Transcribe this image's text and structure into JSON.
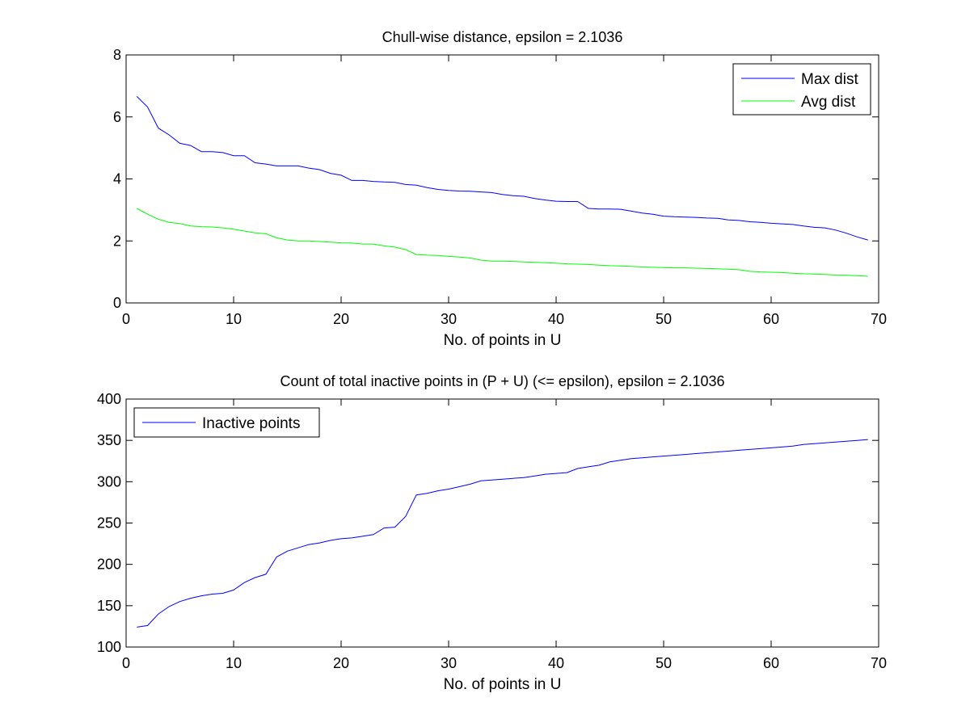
{
  "chart_data": [
    {
      "type": "line",
      "title": "Chull-wise distance, epsilon = 2.1036",
      "xlabel": "No. of points in U",
      "ylabel": "",
      "xlim": [
        0,
        70
      ],
      "ylim": [
        0,
        8
      ],
      "xticks": [
        0,
        10,
        20,
        30,
        40,
        50,
        60,
        70
      ],
      "yticks": [
        0,
        2,
        4,
        6,
        8
      ],
      "grid": false,
      "legend_position": "top-right",
      "x": [
        1,
        2,
        3,
        4,
        5,
        6,
        7,
        8,
        9,
        10,
        11,
        12,
        13,
        14,
        15,
        16,
        17,
        18,
        19,
        20,
        21,
        22,
        23,
        24,
        25,
        26,
        27,
        28,
        29,
        30,
        31,
        32,
        33,
        34,
        35,
        36,
        37,
        38,
        39,
        40,
        41,
        42,
        43,
        44,
        45,
        46,
        47,
        48,
        49,
        50,
        51,
        52,
        53,
        54,
        55,
        56,
        57,
        58,
        59,
        60,
        61,
        62,
        63,
        64,
        65,
        66,
        67,
        68,
        69
      ],
      "series": [
        {
          "name": "Max dist",
          "color": "#0000ff",
          "values": [
            6.66,
            6.32,
            5.64,
            5.42,
            5.15,
            5.08,
            4.88,
            4.88,
            4.85,
            4.75,
            4.75,
            4.52,
            4.48,
            4.42,
            4.42,
            4.42,
            4.35,
            4.3,
            4.18,
            4.12,
            3.95,
            3.95,
            3.92,
            3.9,
            3.89,
            3.82,
            3.8,
            3.72,
            3.66,
            3.63,
            3.61,
            3.6,
            3.58,
            3.56,
            3.5,
            3.46,
            3.44,
            3.37,
            3.32,
            3.28,
            3.27,
            3.27,
            3.05,
            3.03,
            3.03,
            3.02,
            2.96,
            2.9,
            2.86,
            2.8,
            2.78,
            2.77,
            2.76,
            2.74,
            2.73,
            2.68,
            2.66,
            2.62,
            2.6,
            2.57,
            2.55,
            2.53,
            2.48,
            2.44,
            2.42,
            2.35,
            2.25,
            2.13,
            2.03
          ]
        },
        {
          "name": "Avg dist",
          "color": "#00ff00",
          "values": [
            3.05,
            2.86,
            2.7,
            2.6,
            2.56,
            2.48,
            2.46,
            2.45,
            2.42,
            2.38,
            2.32,
            2.26,
            2.23,
            2.1,
            2.03,
            2.0,
            2.0,
            1.98,
            1.96,
            1.94,
            1.93,
            1.9,
            1.9,
            1.84,
            1.8,
            1.72,
            1.56,
            1.54,
            1.53,
            1.5,
            1.48,
            1.45,
            1.38,
            1.35,
            1.35,
            1.34,
            1.32,
            1.31,
            1.3,
            1.28,
            1.26,
            1.25,
            1.24,
            1.22,
            1.2,
            1.19,
            1.18,
            1.16,
            1.15,
            1.14,
            1.13,
            1.13,
            1.12,
            1.11,
            1.1,
            1.09,
            1.07,
            1.02,
            1.0,
            0.99,
            0.98,
            0.96,
            0.94,
            0.93,
            0.92,
            0.9,
            0.89,
            0.88,
            0.86
          ]
        }
      ]
    },
    {
      "type": "line",
      "title": "Count of total inactive points in (P + U) (<= epsilon), epsilon = 2.1036",
      "xlabel": "No. of points in U",
      "ylabel": "",
      "xlim": [
        0,
        70
      ],
      "ylim": [
        100,
        400
      ],
      "xticks": [
        0,
        10,
        20,
        30,
        40,
        50,
        60,
        70
      ],
      "yticks": [
        100,
        150,
        200,
        250,
        300,
        350,
        400
      ],
      "grid": false,
      "legend_position": "top-left",
      "x": [
        1,
        2,
        3,
        4,
        5,
        6,
        7,
        8,
        9,
        10,
        11,
        12,
        13,
        14,
        15,
        16,
        17,
        18,
        19,
        20,
        21,
        22,
        23,
        24,
        25,
        26,
        27,
        28,
        29,
        30,
        31,
        32,
        33,
        34,
        35,
        36,
        37,
        38,
        39,
        40,
        41,
        42,
        43,
        44,
        45,
        46,
        47,
        48,
        49,
        50,
        51,
        52,
        53,
        54,
        55,
        56,
        57,
        58,
        59,
        60,
        61,
        62,
        63,
        64,
        65,
        66,
        67,
        68,
        69
      ],
      "series": [
        {
          "name": "Inactive points",
          "color": "#0000ff",
          "values": [
            124,
            126,
            140,
            149,
            155,
            159,
            162,
            164,
            165,
            169,
            178,
            184,
            188,
            209,
            216,
            220,
            224,
            226,
            229,
            231,
            232,
            234,
            236,
            244,
            245,
            258,
            284,
            286,
            289,
            291,
            294,
            297,
            301,
            302,
            303,
            304,
            305,
            307,
            309,
            310,
            311,
            316,
            318,
            320,
            324,
            326,
            328,
            329,
            330,
            331,
            332,
            333,
            334,
            335,
            336,
            337,
            338,
            339,
            340,
            341,
            342,
            343,
            345,
            346,
            347,
            348,
            349,
            350,
            351
          ]
        }
      ]
    }
  ]
}
